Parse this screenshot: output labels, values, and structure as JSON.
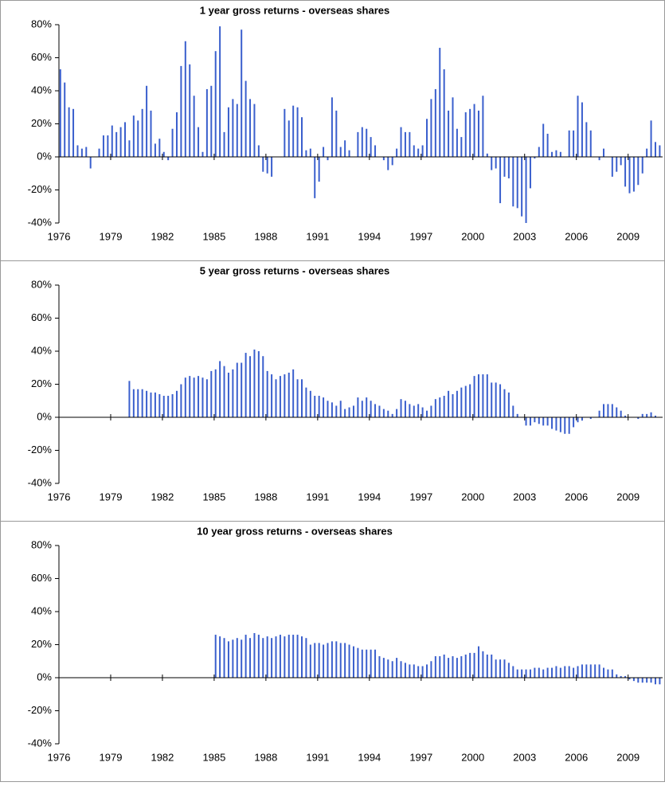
{
  "chart_data": [
    {
      "type": "bar",
      "title": "1 year gross returns - overseas shares",
      "color": "#3a5fcd",
      "xlim": [
        1976,
        2011
      ],
      "xticks": [
        1976,
        1979,
        1982,
        1985,
        1988,
        1991,
        1994,
        1997,
        2000,
        2003,
        2006,
        2009
      ],
      "ylim": [
        -40,
        80
      ],
      "yticks": [
        {
          "value": -40,
          "label": "-40%"
        },
        {
          "value": -20,
          "label": "-20%"
        },
        {
          "value": 0,
          "label": "0%"
        },
        {
          "value": 20,
          "label": "20%"
        },
        {
          "value": 40,
          "label": "40%"
        },
        {
          "value": 60,
          "label": "60%"
        },
        {
          "value": 80,
          "label": "80%"
        }
      ],
      "x": [
        1976,
        1976.25,
        1976.5,
        1976.75,
        1977,
        1977.25,
        1977.5,
        1977.75,
        1978,
        1978.25,
        1978.5,
        1978.75,
        1979,
        1979.25,
        1979.5,
        1979.75,
        1980,
        1980.25,
        1980.5,
        1980.75,
        1981,
        1981.25,
        1981.5,
        1981.75,
        1982,
        1982.25,
        1982.5,
        1982.75,
        1983,
        1983.25,
        1983.5,
        1983.75,
        1984,
        1984.25,
        1984.5,
        1984.75,
        1985,
        1985.25,
        1985.5,
        1985.75,
        1986,
        1986.25,
        1986.5,
        1986.75,
        1987,
        1987.25,
        1987.5,
        1987.75,
        1988,
        1988.25,
        1988.5,
        1988.75,
        1989,
        1989.25,
        1989.5,
        1989.75,
        1990,
        1990.25,
        1990.5,
        1990.75,
        1991,
        1991.25,
        1991.5,
        1991.75,
        1992,
        1992.25,
        1992.5,
        1992.75,
        1993,
        1993.25,
        1993.5,
        1993.75,
        1994,
        1994.25,
        1994.5,
        1994.75,
        1995,
        1995.25,
        1995.5,
        1995.75,
        1996,
        1996.25,
        1996.5,
        1996.75,
        1997,
        1997.25,
        1997.5,
        1997.75,
        1998,
        1998.25,
        1998.5,
        1998.75,
        1999,
        1999.25,
        1999.5,
        1999.75,
        2000,
        2000.25,
        2000.5,
        2000.75,
        2001,
        2001.25,
        2001.5,
        2001.75,
        2002,
        2002.25,
        2002.5,
        2002.75,
        2003,
        2003.25,
        2003.5,
        2003.75,
        2004,
        2004.25,
        2004.5,
        2004.75,
        2005,
        2005.25,
        2005.5,
        2005.75,
        2006,
        2006.25,
        2006.5,
        2006.75,
        2007,
        2007.25,
        2007.5,
        2007.75,
        2008,
        2008.25,
        2008.5,
        2008.75,
        2009,
        2009.25,
        2009.5,
        2009.75,
        2010,
        2010.25,
        2010.5,
        2010.75
      ],
      "values": [
        53,
        45,
        30,
        29,
        7,
        5,
        6,
        -7,
        0,
        5,
        13,
        13,
        19,
        15,
        18,
        21,
        10,
        25,
        22,
        29,
        43,
        28,
        8,
        11,
        3,
        -2,
        17,
        27,
        55,
        70,
        56,
        37,
        18,
        3,
        41,
        43,
        64,
        79,
        15,
        30,
        35,
        32,
        77,
        46,
        35,
        32,
        7,
        -9,
        -10,
        -12,
        0,
        0,
        29,
        22,
        31,
        30,
        24,
        4,
        5,
        -25,
        -15,
        6,
        -2,
        36,
        28,
        6,
        10,
        4,
        0,
        15,
        18,
        17,
        12,
        7,
        0,
        -2,
        -8,
        -5,
        5,
        18,
        15,
        15,
        7,
        5,
        7,
        23,
        35,
        41,
        66,
        53,
        28,
        36,
        17,
        12,
        27,
        29,
        32,
        28,
        37,
        2,
        -8,
        -7,
        -28,
        -12,
        -13,
        -30,
        -31,
        -36,
        -40,
        -19,
        -1,
        6,
        20,
        14,
        3,
        4,
        3,
        0,
        16,
        16,
        37,
        33,
        21,
        16,
        0,
        -2,
        5,
        0,
        -12,
        -9,
        -5,
        -18,
        -22,
        -21,
        -17,
        -10,
        5,
        22,
        9,
        7
      ]
    },
    {
      "type": "bar",
      "title": "5 year gross returns - overseas shares",
      "color": "#3a5fcd",
      "xlim": [
        1976,
        2011
      ],
      "xticks": [
        1976,
        1979,
        1982,
        1985,
        1988,
        1991,
        1994,
        1997,
        2000,
        2003,
        2006,
        2009
      ],
      "ylim": [
        -40,
        80
      ],
      "yticks": [
        {
          "value": -40,
          "label": "-40%"
        },
        {
          "value": -20,
          "label": "-20%"
        },
        {
          "value": 0,
          "label": "0%"
        },
        {
          "value": 20,
          "label": "20%"
        },
        {
          "value": 40,
          "label": "40%"
        },
        {
          "value": 60,
          "label": "60%"
        },
        {
          "value": 80,
          "label": "80%"
        }
      ],
      "x": [
        1980,
        1980.25,
        1980.5,
        1980.75,
        1981,
        1981.25,
        1981.5,
        1981.75,
        1982,
        1982.25,
        1982.5,
        1982.75,
        1983,
        1983.25,
        1983.5,
        1983.75,
        1984,
        1984.25,
        1984.5,
        1984.75,
        1985,
        1985.25,
        1985.5,
        1985.75,
        1986,
        1986.25,
        1986.5,
        1986.75,
        1987,
        1987.25,
        1987.5,
        1987.75,
        1988,
        1988.25,
        1988.5,
        1988.75,
        1989,
        1989.25,
        1989.5,
        1989.75,
        1990,
        1990.25,
        1990.5,
        1990.75,
        1991,
        1991.25,
        1991.5,
        1991.75,
        1992,
        1992.25,
        1992.5,
        1992.75,
        1993,
        1993.25,
        1993.5,
        1993.75,
        1994,
        1994.25,
        1994.5,
        1994.75,
        1995,
        1995.25,
        1995.5,
        1995.75,
        1996,
        1996.25,
        1996.5,
        1996.75,
        1997,
        1997.25,
        1997.5,
        1997.75,
        1998,
        1998.25,
        1998.5,
        1998.75,
        1999,
        1999.25,
        1999.5,
        1999.75,
        2000,
        2000.25,
        2000.5,
        2000.75,
        2001,
        2001.25,
        2001.5,
        2001.75,
        2002,
        2002.25,
        2002.5,
        2002.75,
        2003,
        2003.25,
        2003.5,
        2003.75,
        2004,
        2004.25,
        2004.5,
        2004.75,
        2005,
        2005.25,
        2005.5,
        2005.75,
        2006,
        2006.25,
        2006.5,
        2006.75,
        2007,
        2007.25,
        2007.5,
        2007.75,
        2008,
        2008.25,
        2008.5,
        2008.75,
        2009,
        2009.25,
        2009.5,
        2009.75,
        2010,
        2010.25,
        2010.5,
        2010.75
      ],
      "values": [
        22,
        17,
        17,
        17,
        16,
        15,
        15,
        14,
        13,
        13,
        14,
        16,
        20,
        24,
        25,
        24,
        25,
        24,
        23,
        28,
        29,
        34,
        31,
        27,
        29,
        33,
        33,
        39,
        37,
        41,
        40,
        37,
        28,
        26,
        23,
        25,
        26,
        27,
        29,
        23,
        23,
        18,
        16,
        13,
        13,
        12,
        10,
        9,
        7,
        10,
        5,
        6,
        7,
        12,
        10,
        12,
        10,
        8,
        7,
        5,
        4,
        2,
        5,
        11,
        10,
        8,
        7,
        8,
        6,
        4,
        7,
        11,
        12,
        13,
        16,
        14,
        16,
        18,
        19,
        20,
        25,
        26,
        26,
        26,
        21,
        21,
        20,
        17,
        15,
        7,
        2,
        0,
        -5,
        -5,
        -3,
        -4,
        -5,
        -5,
        -7,
        -8,
        -9,
        -10,
        -10,
        -6,
        -3,
        -2,
        0,
        -1,
        0,
        4,
        8,
        8,
        8,
        6,
        4,
        1,
        0,
        0,
        -1,
        2,
        2,
        3,
        1,
        0
      ]
    },
    {
      "type": "bar",
      "title": "10 year gross returns - overseas shares",
      "color": "#3a5fcd",
      "xlim": [
        1976,
        2011
      ],
      "xticks": [
        1976,
        1979,
        1982,
        1985,
        1988,
        1991,
        1994,
        1997,
        2000,
        2003,
        2006,
        2009
      ],
      "ylim": [
        -40,
        80
      ],
      "yticks": [
        {
          "value": -40,
          "label": "-40%"
        },
        {
          "value": -20,
          "label": "-20%"
        },
        {
          "value": 0,
          "label": "0%"
        },
        {
          "value": 20,
          "label": "20%"
        },
        {
          "value": 40,
          "label": "40%"
        },
        {
          "value": 60,
          "label": "60%"
        },
        {
          "value": 80,
          "label": "80%"
        }
      ],
      "x": [
        1985,
        1985.25,
        1985.5,
        1985.75,
        1986,
        1986.25,
        1986.5,
        1986.75,
        1987,
        1987.25,
        1987.5,
        1987.75,
        1988,
        1988.25,
        1988.5,
        1988.75,
        1989,
        1989.25,
        1989.5,
        1989.75,
        1990,
        1990.25,
        1990.5,
        1990.75,
        1991,
        1991.25,
        1991.5,
        1991.75,
        1992,
        1992.25,
        1992.5,
        1992.75,
        1993,
        1993.25,
        1993.5,
        1993.75,
        1994,
        1994.25,
        1994.5,
        1994.75,
        1995,
        1995.25,
        1995.5,
        1995.75,
        1996,
        1996.25,
        1996.5,
        1996.75,
        1997,
        1997.25,
        1997.5,
        1997.75,
        1998,
        1998.25,
        1998.5,
        1998.75,
        1999,
        1999.25,
        1999.5,
        1999.75,
        2000,
        2000.25,
        2000.5,
        2000.75,
        2001,
        2001.25,
        2001.5,
        2001.75,
        2002,
        2002.25,
        2002.5,
        2002.75,
        2003,
        2003.25,
        2003.5,
        2003.75,
        2004,
        2004.25,
        2004.5,
        2004.75,
        2005,
        2005.25,
        2005.5,
        2005.75,
        2006,
        2006.25,
        2006.5,
        2006.75,
        2007,
        2007.25,
        2007.5,
        2007.75,
        2008,
        2008.25,
        2008.5,
        2008.75,
        2009,
        2009.25,
        2009.5,
        2009.75,
        2010,
        2010.25,
        2010.5,
        2010.75
      ],
      "values": [
        26,
        25,
        24,
        22,
        23,
        24,
        23,
        26,
        24,
        27,
        26,
        24,
        25,
        24,
        25,
        26,
        25,
        26,
        26,
        26,
        25,
        24,
        20,
        21,
        21,
        20,
        21,
        22,
        22,
        21,
        21,
        20,
        19,
        18,
        17,
        17,
        17,
        17,
        13,
        12,
        11,
        10,
        12,
        10,
        9,
        8,
        8,
        7,
        7,
        8,
        10,
        13,
        13,
        14,
        12,
        13,
        12,
        13,
        14,
        15,
        15,
        19,
        16,
        14,
        14,
        11,
        11,
        11,
        9,
        7,
        5,
        5,
        5,
        5,
        6,
        6,
        5,
        6,
        6,
        7,
        6,
        7,
        7,
        6,
        7,
        8,
        8,
        8,
        8,
        8,
        6,
        5,
        5,
        2,
        1,
        1,
        -1,
        -2,
        -3,
        -3,
        -3,
        -3,
        -4,
        -4
      ]
    }
  ]
}
